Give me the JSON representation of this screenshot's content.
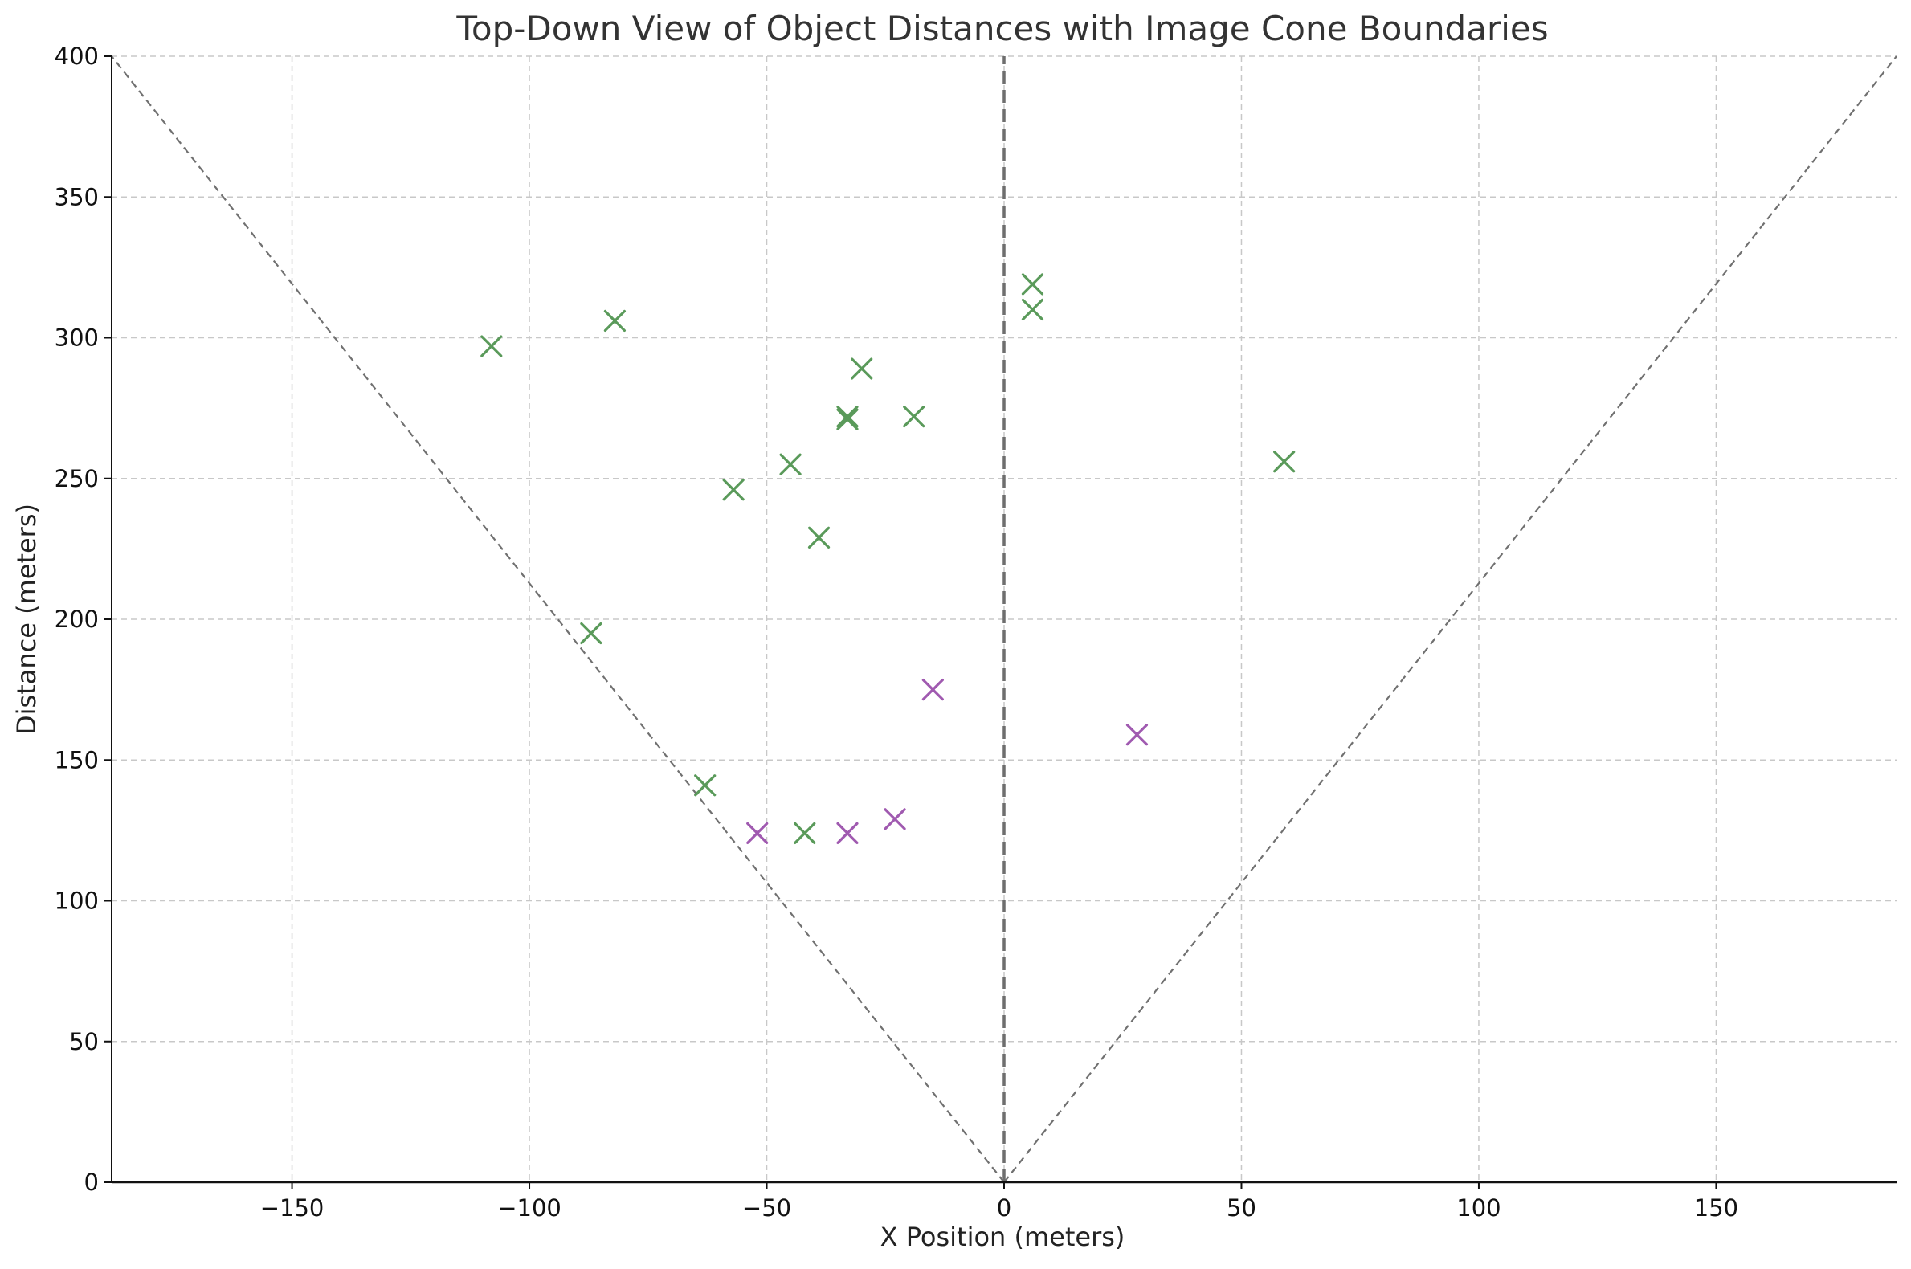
{
  "chart_data": {
    "type": "scatter",
    "title": "Top-Down View of Object Distances with Image Cone Boundaries",
    "xlabel": "X Position (meters)",
    "ylabel": "Distance (meters)",
    "xlim": [
      -188,
      188
    ],
    "ylim": [
      0,
      400
    ],
    "x_ticks": [
      -150,
      -100,
      -50,
      0,
      50,
      100,
      150
    ],
    "x_tick_labels": [
      "−150",
      "−100",
      "−50",
      "0",
      "50",
      "100",
      "150"
    ],
    "y_ticks": [
      0,
      50,
      100,
      150,
      200,
      250,
      300,
      350,
      400
    ],
    "y_tick_labels": [
      "0",
      "50",
      "100",
      "150",
      "200",
      "250",
      "300",
      "350",
      "400"
    ],
    "grid": true,
    "marker": "x",
    "series": [
      {
        "color": "#5a9a5a",
        "points": [
          {
            "x": -108,
            "y": 297
          },
          {
            "x": -82,
            "y": 306
          },
          {
            "x": 6,
            "y": 319
          },
          {
            "x": 6,
            "y": 310
          },
          {
            "x": -30,
            "y": 289
          },
          {
            "x": -33,
            "y": 272
          },
          {
            "x": -33,
            "y": 271
          },
          {
            "x": -19,
            "y": 272
          },
          {
            "x": -45,
            "y": 255
          },
          {
            "x": -57,
            "y": 246
          },
          {
            "x": -39,
            "y": 229
          },
          {
            "x": 59,
            "y": 256
          },
          {
            "x": -87,
            "y": 195
          },
          {
            "x": -63,
            "y": 141
          },
          {
            "x": -42,
            "y": 124
          }
        ]
      },
      {
        "color": "#a05ab0",
        "points": [
          {
            "x": -15,
            "y": 175
          },
          {
            "x": 28,
            "y": 159
          },
          {
            "x": -52,
            "y": 124
          },
          {
            "x": -33,
            "y": 124
          },
          {
            "x": -23,
            "y": 129
          }
        ]
      }
    ],
    "reference_lines": [
      {
        "style": "dashed",
        "color": "#707070",
        "from": [
          0,
          0
        ],
        "to": [
          -188,
          400
        ]
      },
      {
        "style": "dashed",
        "color": "#707070",
        "from": [
          0,
          0
        ],
        "to": [
          188,
          400
        ]
      },
      {
        "style": "dashed-bold",
        "color": "#6e6e6e",
        "from": [
          0,
          0
        ],
        "to": [
          0,
          400
        ]
      },
      {
        "style": "solid",
        "color": "#111111",
        "from": [
          -188,
          0
        ],
        "to": [
          188,
          0
        ]
      }
    ]
  }
}
